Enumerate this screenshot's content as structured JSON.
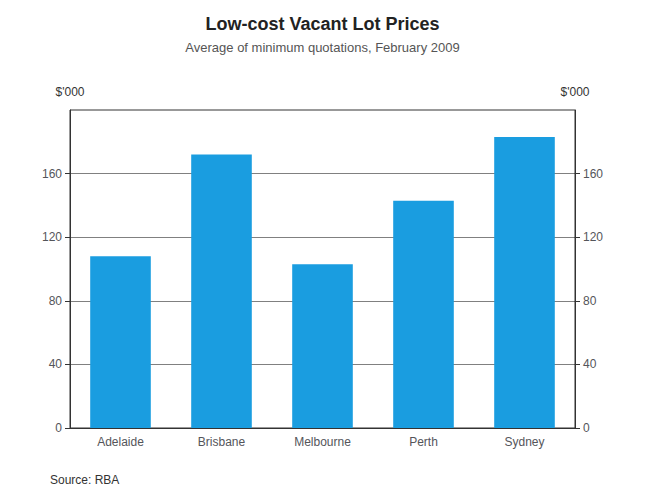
{
  "chart_data": {
    "type": "bar",
    "title": "Low-cost Vacant Lot Prices",
    "subtitle": "Average of minimum quotations, February 2009",
    "categories": [
      "Adelaide",
      "Brisbane",
      "Melbourne",
      "Perth",
      "Sydney"
    ],
    "values": [
      108,
      172,
      103,
      143,
      183
    ],
    "color": "#1a9de0",
    "ylim": [
      0,
      200
    ],
    "yticks": [
      0,
      40,
      80,
      120,
      160
    ],
    "y2lim": [
      0,
      200
    ],
    "y2ticks": [
      0,
      40,
      80,
      120,
      160
    ],
    "ylabel": "$'000",
    "y2label": "$'000",
    "source": "Source: RBA",
    "grid": true
  }
}
